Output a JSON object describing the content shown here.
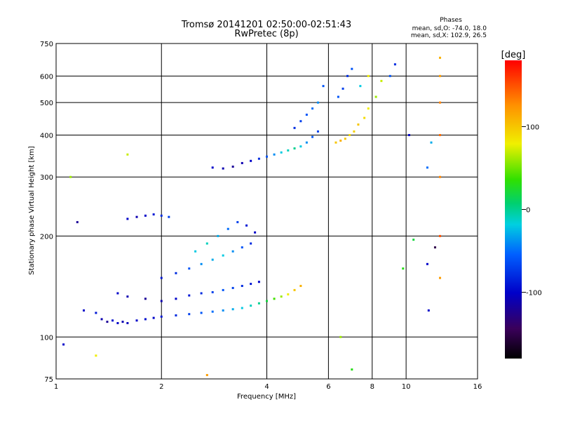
{
  "chart_data": {
    "type": "scatter",
    "title": "Tromsø 20141201 02:50:00-02:51:43",
    "subtitle": "RwPretec (8p)",
    "xlabel": "Frequency [MHz]",
    "ylabel": "Stationary phase Virtual Height [km]",
    "x_scale": "log",
    "y_scale": "log",
    "xlim": [
      1,
      16
    ],
    "ylim": [
      75,
      750
    ],
    "x_ticks": [
      1,
      2,
      4,
      6,
      8,
      10,
      16
    ],
    "y_ticks": [
      75,
      100,
      200,
      300,
      400,
      500,
      600,
      750
    ],
    "grid": true,
    "stats": {
      "header": "Phases",
      "line1": "mean, sd,O: -74.0, 18.0",
      "line2": "mean, sd,X: 102.9, 26.5"
    },
    "colorbar": {
      "label": "[deg]",
      "range": [
        -180,
        180
      ],
      "ticks": [
        100,
        0,
        -100
      ],
      "colormap": "rainbow"
    },
    "series": [
      {
        "values": [
          [
            1.2,
            120,
            -100
          ],
          [
            1.3,
            118,
            -90
          ],
          [
            1.35,
            113,
            -110
          ],
          [
            1.4,
            111,
            -120
          ],
          [
            1.45,
            112,
            -95
          ],
          [
            1.5,
            110,
            -100
          ],
          [
            1.55,
            111,
            -110
          ],
          [
            1.6,
            110,
            -105
          ],
          [
            1.7,
            112,
            -100
          ],
          [
            1.8,
            113,
            -95
          ],
          [
            1.9,
            114,
            -100
          ],
          [
            2.0,
            115,
            -90
          ],
          [
            2.2,
            116,
            -80
          ],
          [
            2.4,
            117,
            -70
          ],
          [
            2.6,
            118,
            -60
          ],
          [
            2.8,
            119,
            -50
          ],
          [
            3.0,
            120,
            -40
          ],
          [
            3.2,
            121,
            -30
          ],
          [
            3.4,
            122,
            -20
          ],
          [
            3.6,
            124,
            -10
          ],
          [
            3.8,
            126,
            0
          ],
          [
            4.0,
            128,
            20
          ],
          [
            4.2,
            130,
            40
          ],
          [
            4.4,
            132,
            60
          ],
          [
            4.6,
            134,
            80
          ],
          [
            4.8,
            138,
            100
          ],
          [
            5.0,
            142,
            110
          ],
          [
            1.5,
            135,
            -100
          ],
          [
            1.6,
            132,
            -110
          ],
          [
            1.8,
            130,
            -120
          ],
          [
            2.0,
            128,
            -110
          ],
          [
            2.2,
            130,
            -100
          ],
          [
            2.4,
            133,
            -90
          ],
          [
            2.6,
            135,
            -80
          ],
          [
            2.8,
            136,
            -70
          ],
          [
            3.0,
            138,
            -60
          ],
          [
            3.2,
            140,
            -70
          ],
          [
            3.4,
            142,
            -80
          ],
          [
            3.6,
            144,
            -90
          ],
          [
            3.8,
            146,
            -100
          ],
          [
            2.0,
            150,
            -90
          ],
          [
            2.2,
            155,
            -80
          ],
          [
            2.4,
            160,
            -60
          ],
          [
            2.6,
            165,
            -40
          ],
          [
            2.8,
            170,
            -30
          ],
          [
            3.0,
            175,
            -20
          ],
          [
            3.2,
            180,
            -40
          ],
          [
            3.4,
            185,
            -60
          ],
          [
            3.6,
            190,
            -80
          ],
          [
            2.5,
            180,
            -20
          ],
          [
            2.7,
            190,
            -10
          ],
          [
            2.9,
            200,
            -30
          ],
          [
            3.1,
            210,
            -50
          ],
          [
            3.3,
            220,
            -70
          ],
          [
            3.5,
            215,
            -90
          ],
          [
            3.7,
            205,
            -100
          ],
          [
            1.6,
            225,
            -100
          ],
          [
            1.7,
            228,
            -110
          ],
          [
            1.8,
            230,
            -100
          ],
          [
            1.9,
            232,
            -90
          ],
          [
            2.0,
            230,
            -80
          ],
          [
            2.1,
            228,
            -70
          ],
          [
            2.8,
            320,
            -100
          ],
          [
            3.0,
            318,
            -110
          ],
          [
            3.2,
            322,
            -120
          ],
          [
            3.4,
            330,
            -110
          ],
          [
            3.6,
            335,
            -100
          ],
          [
            3.8,
            340,
            -80
          ],
          [
            4.0,
            345,
            -60
          ],
          [
            4.2,
            350,
            -40
          ],
          [
            4.4,
            355,
            -20
          ],
          [
            4.6,
            360,
            -10
          ],
          [
            4.8,
            365,
            0
          ],
          [
            5.0,
            370,
            -20
          ],
          [
            5.2,
            380,
            -40
          ],
          [
            5.4,
            395,
            -60
          ],
          [
            5.6,
            410,
            -70
          ],
          [
            4.8,
            420,
            -80
          ],
          [
            5.0,
            440,
            -70
          ],
          [
            5.2,
            460,
            -60
          ],
          [
            5.4,
            480,
            -50
          ],
          [
            5.6,
            500,
            -40
          ],
          [
            5.8,
            560,
            -60
          ],
          [
            6.3,
            380,
            100
          ],
          [
            6.5,
            385,
            110
          ],
          [
            6.7,
            390,
            100
          ],
          [
            6.9,
            400,
            90
          ],
          [
            7.1,
            410,
            95
          ],
          [
            7.3,
            430,
            100
          ],
          [
            7.6,
            450,
            90
          ],
          [
            7.8,
            480,
            80
          ],
          [
            6.4,
            520,
            -60
          ],
          [
            6.6,
            550,
            -70
          ],
          [
            6.8,
            600,
            -80
          ],
          [
            7.0,
            630,
            -60
          ],
          [
            7.4,
            560,
            -20
          ],
          [
            7.8,
            600,
            80
          ],
          [
            8.2,
            520,
            60
          ],
          [
            8.5,
            580,
            70
          ],
          [
            9.0,
            600,
            -60
          ],
          [
            9.3,
            650,
            -80
          ],
          [
            11.5,
            320,
            -50
          ],
          [
            11.8,
            380,
            -30
          ],
          [
            12.5,
            600,
            120
          ],
          [
            12.5,
            500,
            130
          ],
          [
            12.5,
            400,
            140
          ],
          [
            12.5,
            300,
            130
          ],
          [
            12.5,
            200,
            150
          ],
          [
            12.5,
            150,
            120
          ],
          [
            12.5,
            680,
            110
          ],
          [
            1.05,
            95,
            -100
          ],
          [
            1.1,
            300,
            60
          ],
          [
            1.15,
            220,
            -120
          ],
          [
            1.3,
            88,
            80
          ],
          [
            1.6,
            350,
            70
          ],
          [
            2.7,
            77,
            120
          ],
          [
            6.5,
            100,
            60
          ],
          [
            7.0,
            80,
            30
          ],
          [
            10.2,
            400,
            -100
          ],
          [
            11.5,
            165,
            -100
          ],
          [
            11.6,
            120,
            -100
          ],
          [
            12.1,
            185,
            -150
          ],
          [
            9.8,
            160,
            30
          ],
          [
            10.5,
            195,
            20
          ]
        ]
      }
    ]
  }
}
